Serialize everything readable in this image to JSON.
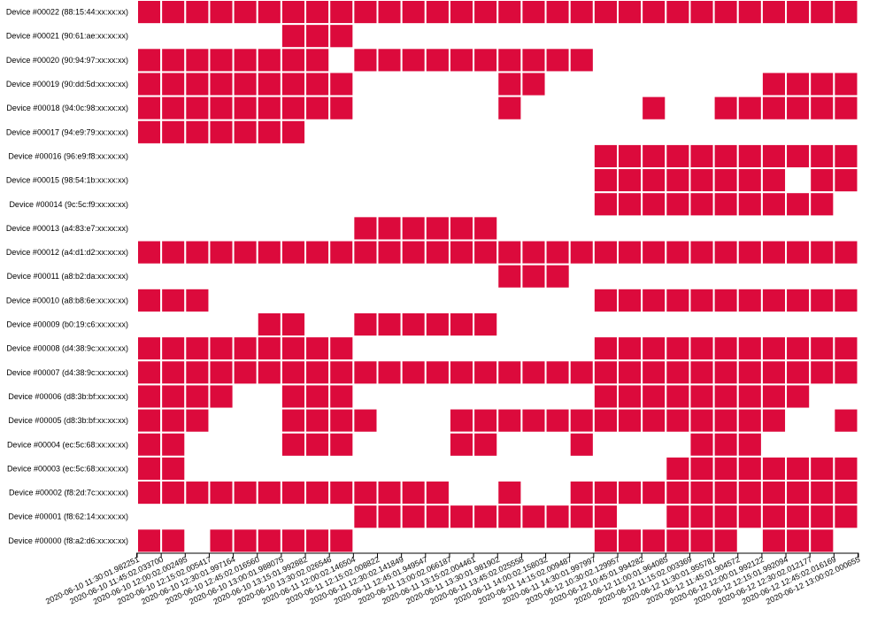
{
  "chart_data": {
    "type": "heatmap",
    "title": "",
    "xlabel": "",
    "ylabel": "",
    "active_color": "#dc0a3c",
    "devices": [
      "Device #00022 (88:15:44:xx:xx:xx)",
      "Device #00021 (90:61:ae:xx:xx:xx)",
      "Device #00020 (90:94:97:xx:xx:xx)",
      "Device #00019 (90:dd:5d:xx:xx:xx)",
      "Device #00018 (94:0c:98:xx:xx:xx)",
      "Device #00017 (94:e9:79:xx:xx:xx)",
      "Device #00016 (96:e9:f8:xx:xx:xx)",
      "Device #00015 (98:54:1b:xx:xx:xx)",
      "Device #00014 (9c:5c:f9:xx:xx:xx)",
      "Device #00013 (a4:83:e7:xx:xx:xx)",
      "Device #00012 (a4:d1:d2:xx:xx:xx)",
      "Device #00011 (a8:b2:da:xx:xx:xx)",
      "Device #00010 (a8:b8:6e:xx:xx:xx)",
      "Device #00009 (b0:19:c6:xx:xx:xx)",
      "Device #00008 (d4:38:9c:xx:xx:xx)",
      "Device #00007 (d4:38:9c:xx:xx:xx)",
      "Device #00006 (d8:3b:bf:xx:xx:xx)",
      "Device #00005 (d8:3b:bf:xx:xx:xx)",
      "Device #00004 (ec:5c:68:xx:xx:xx)",
      "Device #00003 (ec:5c:68:xx:xx:xx)",
      "Device #00002 (f8:2d:7c:xx:xx:xx)",
      "Device #00001 (f8:62:14:xx:xx:xx)",
      "Device #00000 (f8:a2:d6:xx:xx:xx)"
    ],
    "timestamps": [
      "2020-06-10 11:30:01.982251",
      "2020-06-10 11:45:02.033700",
      "2020-06-10 12:00:02.002495",
      "2020-06-10 12:15:02.005417",
      "2020-06-10 12:30:01.997164",
      "2020-06-10 12:45:02.016560",
      "2020-06-10 13:00:01.988075",
      "2020-06-10 13:15:01.992882",
      "2020-06-10 13:30:02.026546",
      "2020-06-11 12:00:02.146504",
      "2020-06-11 12:15:02.008822",
      "2020-06-11 12:30:02.141849",
      "2020-06-11 12:45:01.949547",
      "2020-06-11 13:00:02.066187",
      "2020-06-11 13:15:02.004461",
      "2020-06-11 13:30:01.981902",
      "2020-06-11 13:45:02.025558",
      "2020-06-11 14:00:02.158032",
      "2020-06-11 14:15:02.009487",
      "2020-06-11 14:30:01.997997",
      "2020-06-12 10:30:02.129957",
      "2020-06-12 10:45:01.994282",
      "2020-06-12 11:00:01.964085",
      "2020-06-12 11:15:02.003369",
      "2020-06-12 11:30:01.955781",
      "2020-06-12 11:45:01.904572",
      "2020-06-12 12:00:01.992122",
      "2020-06-12 12:15:01.992094",
      "2020-06-12 12:30:02.012177",
      "2020-06-12 12:45:02.016169",
      "2020-06-12 13:00:02.000655"
    ],
    "active_rows": [
      "111111111111111111111111111111",
      "000000111000000000000000000000",
      "111111110111111111100000000000",
      "111111111000000110000000001111",
      "111111111000000100000100111111",
      "111111100000000000000000000000",
      "000000000000000000011111111111",
      "000000000000000000011111111011",
      "000000000000000000011111111110",
      "000000000111111000000000000000",
      "111111111111111111111111111111",
      "000000000000000111000000000000",
      "111000000000000000011111111111",
      "000001100111111000000000000000",
      "111111111000000000011111111111",
      "111111111111111111111111111111",
      "111100111000000000011111111100",
      "111000111100011111111111111001",
      "110000111000011000100001110000",
      "110000000000000000000011111111",
      "111111111111100100111111111111",
      "000000000111111111110011111111",
      "110111111000000000011111101110"
    ]
  }
}
